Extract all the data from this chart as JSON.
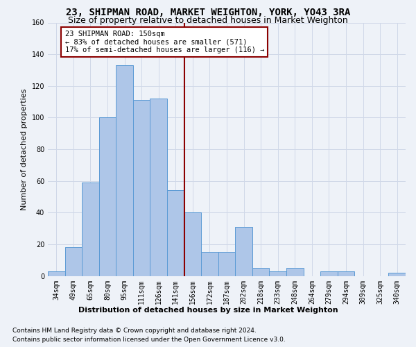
{
  "title": "23, SHIPMAN ROAD, MARKET WEIGHTON, YORK, YO43 3RA",
  "subtitle": "Size of property relative to detached houses in Market Weighton",
  "xlabel": "Distribution of detached houses by size in Market Weighton",
  "ylabel": "Number of detached properties",
  "categories": [
    "34sqm",
    "49sqm",
    "65sqm",
    "80sqm",
    "95sqm",
    "111sqm",
    "126sqm",
    "141sqm",
    "156sqm",
    "172sqm",
    "187sqm",
    "202sqm",
    "218sqm",
    "233sqm",
    "248sqm",
    "264sqm",
    "279sqm",
    "294sqm",
    "309sqm",
    "325sqm",
    "340sqm"
  ],
  "values": [
    3,
    18,
    59,
    100,
    133,
    111,
    112,
    54,
    40,
    15,
    15,
    31,
    5,
    3,
    5,
    0,
    3,
    3,
    0,
    0,
    2
  ],
  "bar_color": "#aec6e8",
  "bar_edge_color": "#5b9bd5",
  "vline_color": "#8b0000",
  "annotation_text": "23 SHIPMAN ROAD: 150sqm\n← 83% of detached houses are smaller (571)\n17% of semi-detached houses are larger (116) →",
  "annotation_box_color": "#ffffff",
  "annotation_box_edge_color": "#8b0000",
  "ylim": [
    0,
    160
  ],
  "yticks": [
    0,
    20,
    40,
    60,
    80,
    100,
    120,
    140,
    160
  ],
  "grid_color": "#d0d8e8",
  "background_color": "#eef2f8",
  "footer_line1": "Contains HM Land Registry data © Crown copyright and database right 2024.",
  "footer_line2": "Contains public sector information licensed under the Open Government Licence v3.0.",
  "title_fontsize": 10,
  "subtitle_fontsize": 9,
  "xlabel_fontsize": 8,
  "ylabel_fontsize": 8,
  "tick_fontsize": 7,
  "annotation_fontsize": 7.5,
  "footer_fontsize": 6.5
}
